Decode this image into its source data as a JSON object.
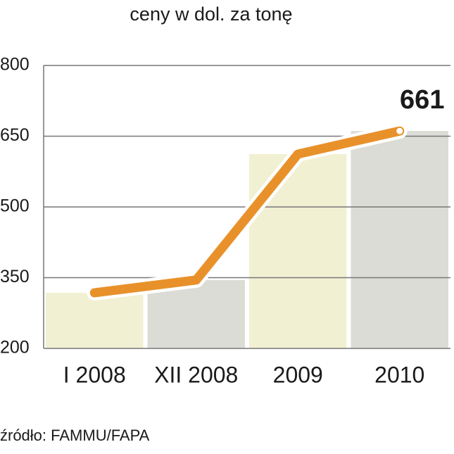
{
  "chart_data": {
    "type": "bar-line",
    "title": "ceny w dol. za tonę",
    "source": "źródło: FAMMU/FAPA",
    "categories": [
      "I 2008",
      "XII 2008",
      "2009",
      "2010"
    ],
    "values": [
      318,
      345,
      612,
      661
    ],
    "value_labels": [
      null,
      null,
      null,
      "661"
    ],
    "bar_colors": [
      "#f1f0d3",
      "#dcdcd6",
      "#f1f0d3",
      "#dcdcd6"
    ],
    "line_color": "#e8912b",
    "ylim": [
      200,
      800
    ],
    "yticks": [
      200,
      350,
      500,
      650,
      800
    ],
    "grid": true
  }
}
